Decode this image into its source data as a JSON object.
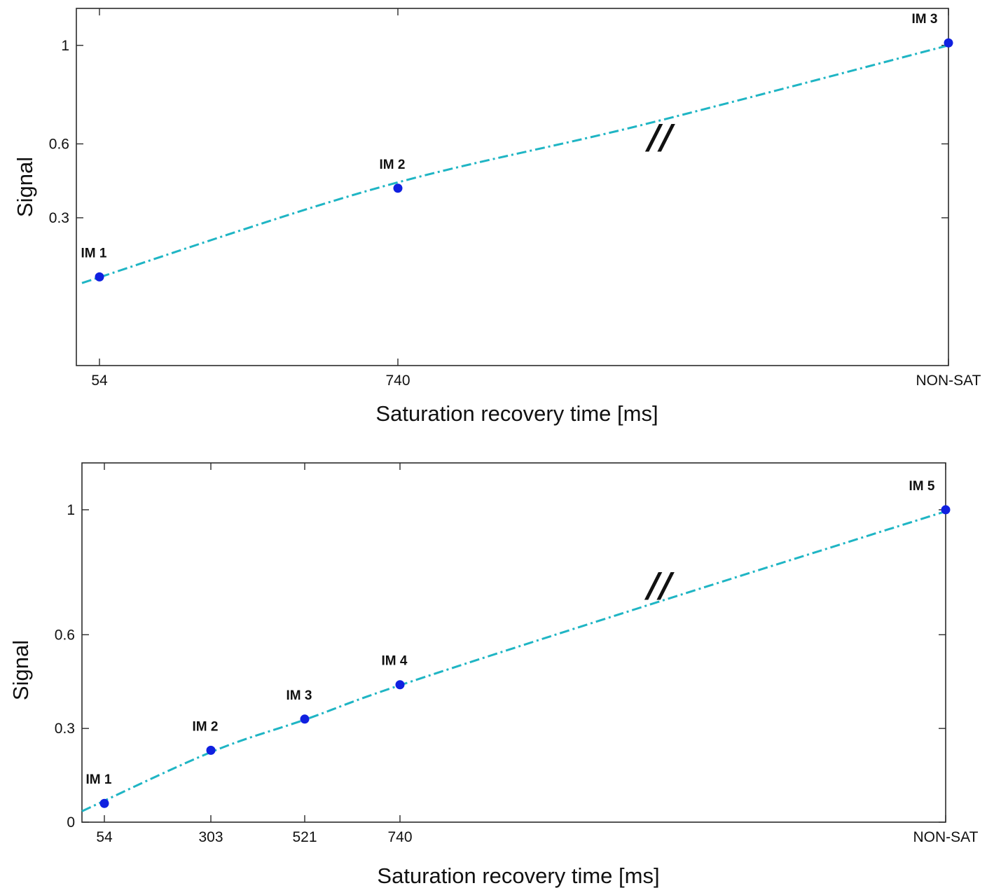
{
  "chart_data": [
    {
      "type": "line",
      "xlabel": "Saturation recovery time [ms]",
      "ylabel": "Signal",
      "x_tick_labels": [
        "54",
        "740",
        "NON-SAT"
      ],
      "y_tick_labels": [
        "0.3",
        "0.6",
        "1"
      ],
      "y_ticks": [
        0.3,
        0.6,
        1
      ],
      "ylim": [
        -0.3,
        1.15
      ],
      "break_marker": "//",
      "colors": {
        "curve": "#1fb5c4",
        "points": "#1020e0"
      },
      "points": [
        {
          "label": "IM 1",
          "x": "54",
          "y": 0.06
        },
        {
          "label": "IM 2",
          "x": "740",
          "y": 0.42
        },
        {
          "label": "IM 3",
          "x": "NON-SAT",
          "y": 1.01
        }
      ],
      "fit_curve": [
        [
          0,
          0.035
        ],
        [
          0.34,
          0.42
        ],
        [
          0.65,
          0.68
        ],
        [
          1.0,
          1.0
        ]
      ]
    },
    {
      "type": "line",
      "xlabel": "Saturation recovery time [ms]",
      "ylabel": "Signal",
      "x_tick_labels": [
        "54",
        "303",
        "521",
        "740",
        "NON-SAT"
      ],
      "y_tick_labels": [
        "0",
        "0.3",
        "0.6",
        "1"
      ],
      "y_ticks": [
        0,
        0.3,
        0.6,
        1
      ],
      "ylim": [
        0,
        1.15
      ],
      "break_marker": "//",
      "colors": {
        "curve": "#1fb5c4",
        "points": "#1020e0"
      },
      "points": [
        {
          "label": "IM 1",
          "x": "54",
          "y": 0.06
        },
        {
          "label": "IM 2",
          "x": "303",
          "y": 0.23
        },
        {
          "label": "IM 3",
          "x": "521",
          "y": 0.33
        },
        {
          "label": "IM 4",
          "x": "740",
          "y": 0.44
        },
        {
          "label": "IM 5",
          "x": "NON-SAT",
          "y": 1.0
        }
      ],
      "fit_curve": [
        [
          0,
          0.035
        ],
        [
          0.15,
          0.225
        ],
        [
          0.26,
          0.33
        ],
        [
          0.37,
          0.44
        ],
        [
          0.65,
          0.69
        ],
        [
          1.0,
          0.995
        ]
      ]
    }
  ]
}
